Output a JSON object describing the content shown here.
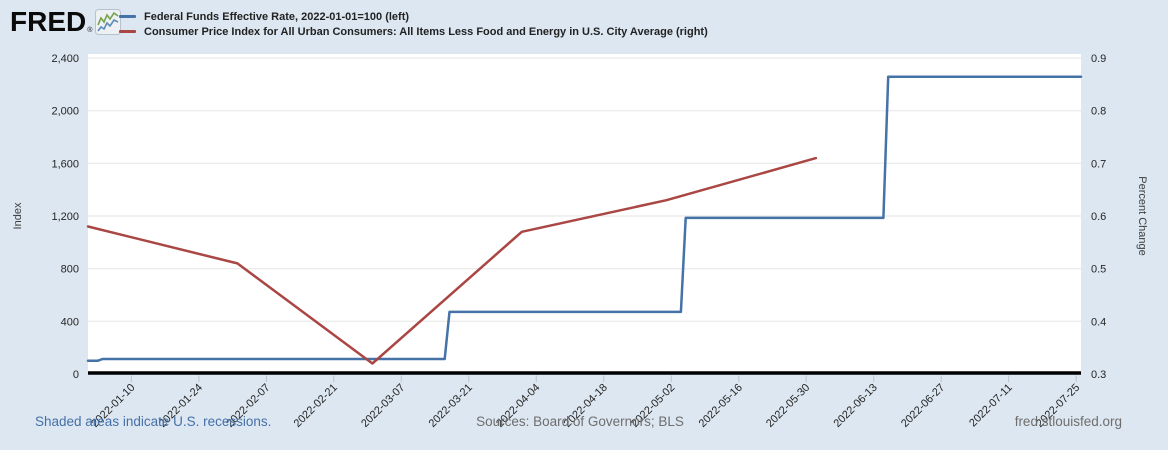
{
  "logo": {
    "text": "FRED",
    "registered": "®"
  },
  "legend": {
    "items": [
      {
        "label": "Federal Funds Effective Rate, 2022-01-01=100 (left)",
        "color": "#4572a7"
      },
      {
        "label": "Consumer Price Index for All Urban Consumers: All Items Less Food and Energy in U.S. City Average (right)",
        "color": "#aa4643"
      }
    ]
  },
  "chart_data": {
    "type": "line",
    "x_axis": {
      "unit": "date",
      "start": "2022-01-01",
      "end": "2022-07-26",
      "ticks": [
        {
          "label": "2022-01-10",
          "day": 9
        },
        {
          "label": "2022-01-24",
          "day": 23
        },
        {
          "label": "2022-02-07",
          "day": 37
        },
        {
          "label": "2022-02-21",
          "day": 51
        },
        {
          "label": "2022-03-07",
          "day": 65
        },
        {
          "label": "2022-03-21",
          "day": 79
        },
        {
          "label": "2022-04-04",
          "day": 93
        },
        {
          "label": "2022-04-18",
          "day": 107
        },
        {
          "label": "2022-05-02",
          "day": 121
        },
        {
          "label": "2022-05-16",
          "day": 135
        },
        {
          "label": "2022-05-30",
          "day": 149
        },
        {
          "label": "2022-06-13",
          "day": 163
        },
        {
          "label": "2022-06-27",
          "day": 177
        },
        {
          "label": "2022-07-11",
          "day": 191
        },
        {
          "label": "2022-07-25",
          "day": 205
        }
      ]
    },
    "left_axis": {
      "label": "Index",
      "range": [
        0,
        2400
      ],
      "ticks": [
        {
          "label": "0",
          "value": 0
        },
        {
          "label": "400",
          "value": 400
        },
        {
          "label": "800",
          "value": 800
        },
        {
          "label": "1,200",
          "value": 1200
        },
        {
          "label": "1,600",
          "value": 1600
        },
        {
          "label": "2,000",
          "value": 2000
        },
        {
          "label": "2,400",
          "value": 2400
        }
      ]
    },
    "right_axis": {
      "label": "Percent Change",
      "range": [
        0.3,
        0.9
      ],
      "ticks": [
        {
          "label": "0.3",
          "value": 0.3
        },
        {
          "label": "0.4",
          "value": 0.4
        },
        {
          "label": "0.5",
          "value": 0.5
        },
        {
          "label": "0.6",
          "value": 0.6
        },
        {
          "label": "0.7",
          "value": 0.7
        },
        {
          "label": "0.8",
          "value": 0.8
        },
        {
          "label": "0.9",
          "value": 0.9
        }
      ]
    },
    "series": [
      {
        "name": "Federal Funds Effective Rate, 2022-01-01=100",
        "axis": "left",
        "color": "#4572a7",
        "points": [
          [
            0,
            100
          ],
          [
            2,
            100
          ],
          [
            3,
            114.3
          ],
          [
            74,
            114.3
          ],
          [
            75,
            471.4
          ],
          [
            123,
            471.4
          ],
          [
            124,
            1185.7
          ],
          [
            165,
            1185.7
          ],
          [
            166,
            2257.1
          ],
          [
            206,
            2257.1
          ]
        ]
      },
      {
        "name": "Consumer Price Index for All Urban Consumers: All Items Less Food and Energy in U.S. City Average",
        "axis": "right",
        "color": "#aa4643",
        "points": [
          [
            0,
            0.58
          ],
          [
            31,
            0.51
          ],
          [
            59,
            0.32
          ],
          [
            90,
            0.57
          ],
          [
            120,
            0.63
          ],
          [
            151,
            0.71
          ]
        ]
      }
    ]
  },
  "footer": {
    "recession_note": "Shaded areas indicate U.S. recessions.",
    "sources": "Sources: Board of Governors; BLS",
    "site": "fred.stlouisfed.org"
  }
}
